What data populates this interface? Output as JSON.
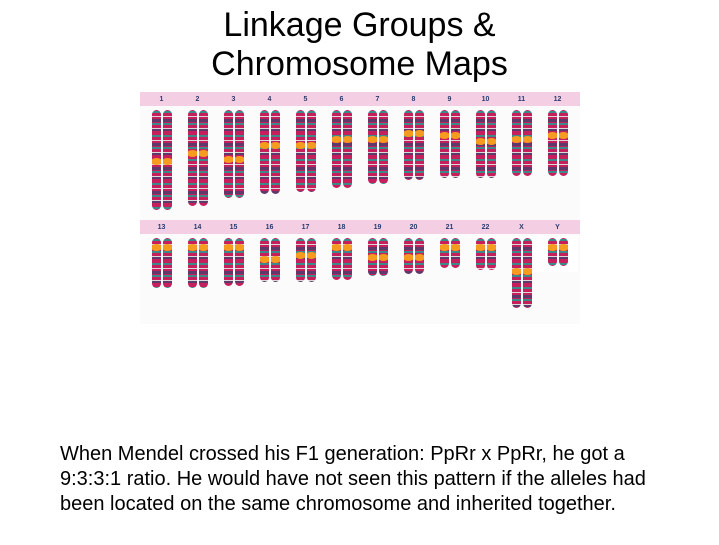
{
  "title_line1": "Linkage Groups &",
  "title_line2": "Chromosome Maps",
  "body_text": "When Mendel crossed his F1 generation:  PpRr x PpRr, he got a 9:3:3:1 ratio.   He would have not seen this pattern if the alleles had been located on the same chromosome and inherited together.",
  "colors": {
    "header_bg": "#f4cfe3",
    "header_text": "#2a3b6f",
    "centromere": "#f59b1f",
    "band1": "#c71f5c",
    "band2": "#3a8a8a",
    "band3": "#d9d9d9",
    "band4": "#5d3a6b"
  },
  "row1_labels": [
    "1",
    "2",
    "3",
    "4",
    "5",
    "6",
    "7",
    "8",
    "9",
    "10",
    "11",
    "12"
  ],
  "row2_labels": [
    "13",
    "14",
    "15",
    "16",
    "17",
    "18",
    "19",
    "20",
    "21",
    "22",
    "X",
    "Y"
  ],
  "row1_heights": [
    100,
    96,
    88,
    84,
    82,
    78,
    74,
    70,
    68,
    68,
    66,
    66
  ],
  "row1_cent": [
    48,
    40,
    46,
    32,
    32,
    26,
    26,
    20,
    22,
    28,
    26,
    22
  ],
  "row2_heights": [
    50,
    50,
    48,
    44,
    44,
    42,
    38,
    36,
    30,
    32,
    70,
    28
  ],
  "row2_cent": [
    6,
    6,
    6,
    18,
    14,
    6,
    16,
    16,
    6,
    6,
    30,
    6
  ],
  "band_pattern": [
    "#c71f5c",
    "#3a8a8a",
    "#c71f5c",
    "#d9d9d9",
    "#c71f5c",
    "#5d3a6b",
    "#c71f5c",
    "#3a8a8a",
    "#c71f5c",
    "#d9d9d9",
    "#5d3a6b",
    "#c71f5c"
  ]
}
